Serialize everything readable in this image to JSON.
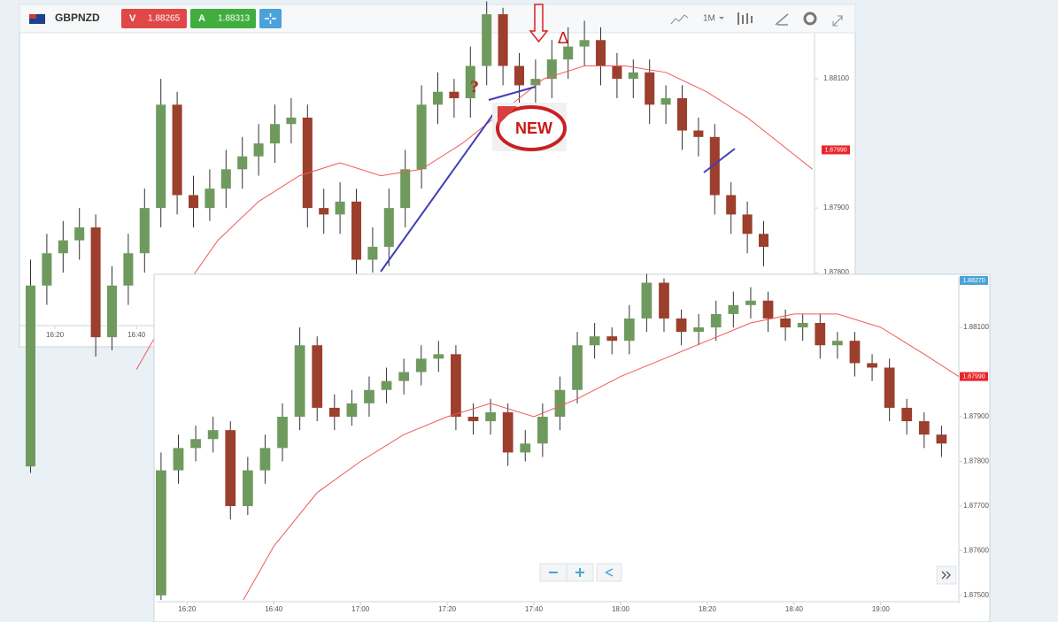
{
  "toolbar": {
    "symbol": "GBPNZD",
    "sell_label": "V",
    "sell_price": "1.88265",
    "buy_label": "A",
    "buy_price": "1.88313",
    "period": "1M"
  },
  "annotations": {
    "question": "?",
    "delta": "Δ",
    "badge": "NEW"
  },
  "chart_data": [
    {
      "type": "candlestick",
      "up_color": "#6f9a5e",
      "down_color": "#9c3f2c",
      "x": [
        14,
        18,
        22,
        26,
        30,
        34,
        38,
        42,
        46,
        50,
        54,
        58,
        62,
        66,
        70,
        74,
        78,
        82,
        86,
        90,
        94,
        98,
        102,
        106,
        110,
        114,
        118,
        122,
        126,
        130,
        134,
        138,
        142,
        146,
        150,
        154,
        158,
        162,
        166,
        170,
        174,
        178,
        182,
        186,
        190,
        194
      ],
      "open": [
        1.875,
        1.8778,
        1.8783,
        1.8785,
        1.8787,
        1.877,
        1.8778,
        1.8783,
        1.879,
        1.8806,
        1.8792,
        1.879,
        1.8793,
        1.8796,
        1.8798,
        1.88,
        1.8803,
        1.8804,
        1.879,
        1.8789,
        1.8791,
        1.8782,
        1.8784,
        1.879,
        1.8796,
        1.8806,
        1.8808,
        1.8807,
        1.8812,
        1.882,
        1.8812,
        1.8809,
        1.881,
        1.8813,
        1.8815,
        1.8816,
        1.8812,
        1.881,
        1.8811,
        1.8806,
        1.8807,
        1.8802,
        1.8801,
        1.8792,
        1.8789,
        1.8786
      ],
      "high": [
        1.8782,
        1.8786,
        1.8788,
        1.879,
        1.8789,
        1.8781,
        1.8786,
        1.8793,
        1.881,
        1.8808,
        1.8795,
        1.8796,
        1.8799,
        1.8801,
        1.8803,
        1.8806,
        1.8807,
        1.8806,
        1.8793,
        1.8794,
        1.8793,
        1.8787,
        1.8793,
        1.8799,
        1.8809,
        1.8811,
        1.881,
        1.8815,
        1.8822,
        1.8821,
        1.8814,
        1.8813,
        1.8816,
        1.8818,
        1.8819,
        1.8818,
        1.8814,
        1.8813,
        1.8813,
        1.8809,
        1.8809,
        1.8804,
        1.8803,
        1.8794,
        1.8791,
        1.8788
      ],
      "low": [
        1.8749,
        1.8775,
        1.878,
        1.8782,
        1.8767,
        1.8768,
        1.8775,
        1.878,
        1.8787,
        1.8789,
        1.8787,
        1.8788,
        1.879,
        1.8793,
        1.8795,
        1.8797,
        1.88,
        1.8787,
        1.8786,
        1.8786,
        1.8779,
        1.878,
        1.8781,
        1.8787,
        1.8793,
        1.8803,
        1.8804,
        1.8804,
        1.8809,
        1.8809,
        1.8806,
        1.8806,
        1.8807,
        1.881,
        1.8812,
        1.8809,
        1.8807,
        1.8807,
        1.8803,
        1.8803,
        1.8799,
        1.8798,
        1.8789,
        1.8786,
        1.8783,
        1.8781
      ],
      "close": [
        1.8778,
        1.8783,
        1.8785,
        1.8787,
        1.877,
        1.8778,
        1.8783,
        1.879,
        1.8806,
        1.8792,
        1.879,
        1.8793,
        1.8796,
        1.8798,
        1.88,
        1.8803,
        1.8804,
        1.879,
        1.8789,
        1.8791,
        1.8782,
        1.8784,
        1.879,
        1.8796,
        1.8806,
        1.8808,
        1.8807,
        1.8812,
        1.882,
        1.8812,
        1.8809,
        1.881,
        1.8813,
        1.8815,
        1.8816,
        1.8812,
        1.881,
        1.8811,
        1.8806,
        1.8807,
        1.8802,
        1.8801,
        1.8792,
        1.8789,
        1.8786,
        1.8784
      ],
      "moving_average": {
        "color": "#f05a5a",
        "x": [
          40,
          50,
          60,
          70,
          80,
          90,
          100,
          110,
          120,
          130,
          140,
          150,
          160,
          170,
          180,
          190,
          200,
          206
        ],
        "values": [
          1.8765,
          1.8776,
          1.8785,
          1.8791,
          1.8795,
          1.8797,
          1.8795,
          1.8796,
          1.88,
          1.8805,
          1.881,
          1.8812,
          1.8812,
          1.8811,
          1.8808,
          1.8804,
          1.8799,
          1.8796
        ]
      },
      "xlim": [
        11.5,
        206.5
      ],
      "ylim": [
        1.87718,
        1.8817
      ],
      "xticks": [
        {
          "value": 20,
          "label": "16:20"
        },
        {
          "value": 40,
          "label": "16:40"
        }
      ],
      "yticks": [
        {
          "value": 1.881,
          "label": "1.88100"
        },
        {
          "value": 1.879,
          "label": "1.87900"
        },
        {
          "value": 1.878,
          "label": "1.87800"
        }
      ],
      "price_tags": [
        {
          "value": 1.8799,
          "label": "1.87990",
          "color": "#e8262a"
        }
      ]
    },
    {
      "type": "candlestick",
      "up_color": "#6f9a5e",
      "down_color": "#9c3f2c",
      "x": [
        14,
        18,
        22,
        26,
        30,
        34,
        38,
        42,
        46,
        50,
        54,
        58,
        62,
        66,
        70,
        74,
        78,
        82,
        86,
        90,
        94,
        98,
        102,
        106,
        110,
        114,
        118,
        122,
        126,
        130,
        134,
        138,
        142,
        146,
        150,
        154,
        158,
        162,
        166,
        170,
        174,
        178,
        182,
        186,
        190,
        194
      ],
      "open": [
        1.875,
        1.8778,
        1.8783,
        1.8785,
        1.8787,
        1.877,
        1.8778,
        1.8783,
        1.879,
        1.8806,
        1.8792,
        1.879,
        1.8793,
        1.8796,
        1.8798,
        1.88,
        1.8803,
        1.8804,
        1.879,
        1.8789,
        1.8791,
        1.8782,
        1.8784,
        1.879,
        1.8796,
        1.8806,
        1.8808,
        1.8807,
        1.8812,
        1.882,
        1.8812,
        1.8809,
        1.881,
        1.8813,
        1.8815,
        1.8816,
        1.8812,
        1.881,
        1.8811,
        1.8806,
        1.8807,
        1.8802,
        1.8801,
        1.8792,
        1.8789,
        1.8786
      ],
      "high": [
        1.8782,
        1.8786,
        1.8788,
        1.879,
        1.8789,
        1.8781,
        1.8786,
        1.8793,
        1.881,
        1.8808,
        1.8795,
        1.8796,
        1.8799,
        1.8801,
        1.8803,
        1.8806,
        1.8807,
        1.8806,
        1.8793,
        1.8794,
        1.8793,
        1.8787,
        1.8793,
        1.8799,
        1.8809,
        1.8811,
        1.881,
        1.8815,
        1.8822,
        1.8821,
        1.8814,
        1.8813,
        1.8816,
        1.8818,
        1.8819,
        1.8818,
        1.8814,
        1.8813,
        1.8813,
        1.8809,
        1.8809,
        1.8804,
        1.8803,
        1.8794,
        1.8791,
        1.8788
      ],
      "low": [
        1.8749,
        1.8775,
        1.878,
        1.8782,
        1.8767,
        1.8768,
        1.8775,
        1.878,
        1.8787,
        1.8789,
        1.8787,
        1.8788,
        1.879,
        1.8793,
        1.8795,
        1.8797,
        1.88,
        1.8787,
        1.8786,
        1.8786,
        1.8779,
        1.878,
        1.8781,
        1.8787,
        1.8793,
        1.8803,
        1.8804,
        1.8804,
        1.8809,
        1.8809,
        1.8806,
        1.8806,
        1.8807,
        1.881,
        1.8812,
        1.8809,
        1.8807,
        1.8807,
        1.8803,
        1.8803,
        1.8799,
        1.8798,
        1.8789,
        1.8786,
        1.8783,
        1.8781
      ],
      "close": [
        1.8778,
        1.8783,
        1.8785,
        1.8787,
        1.877,
        1.8778,
        1.8783,
        1.879,
        1.8806,
        1.8792,
        1.879,
        1.8793,
        1.8796,
        1.8798,
        1.88,
        1.8803,
        1.8804,
        1.879,
        1.8789,
        1.8791,
        1.8782,
        1.8784,
        1.879,
        1.8796,
        1.8806,
        1.8808,
        1.8807,
        1.8812,
        1.882,
        1.8812,
        1.8809,
        1.881,
        1.8813,
        1.8815,
        1.8816,
        1.8812,
        1.881,
        1.8811,
        1.8806,
        1.8807,
        1.8802,
        1.8801,
        1.8792,
        1.8789,
        1.8786,
        1.8784
      ],
      "moving_average": {
        "color": "#f05a5a",
        "x": [
          33,
          40,
          50,
          60,
          70,
          80,
          90,
          100,
          110,
          120,
          130,
          140,
          150,
          160,
          170,
          180,
          190,
          198
        ],
        "values": [
          1.8749,
          1.8761,
          1.8773,
          1.878,
          1.8786,
          1.879,
          1.8793,
          1.879,
          1.8794,
          1.8799,
          1.8803,
          1.8807,
          1.8811,
          1.8813,
          1.8813,
          1.881,
          1.8804,
          1.8799
        ]
      },
      "xlim": [
        13,
        198
      ],
      "ylim": [
        1.87486,
        1.88213
      ],
      "xticks": [
        {
          "value": 20,
          "label": "16:20"
        },
        {
          "value": 40,
          "label": "16:40"
        },
        {
          "value": 60,
          "label": "17:00"
        },
        {
          "value": 80,
          "label": "17:20"
        },
        {
          "value": 100,
          "label": "17:40"
        },
        {
          "value": 120,
          "label": "18:00"
        },
        {
          "value": 140,
          "label": "18:20"
        },
        {
          "value": 160,
          "label": "18:40"
        },
        {
          "value": 180,
          "label": "19:00"
        }
      ],
      "yticks": [
        {
          "value": 1.881,
          "label": "1.88100"
        },
        {
          "value": 1.879,
          "label": "1.87900"
        },
        {
          "value": 1.878,
          "label": "1.87800"
        },
        {
          "value": 1.877,
          "label": "1.87700"
        },
        {
          "value": 1.876,
          "label": "1.87600"
        },
        {
          "value": 1.875,
          "label": "1.87500"
        }
      ],
      "price_tags": [
        {
          "value": 1.8799,
          "label": "1.87990",
          "color": "#e8262a"
        },
        {
          "value": 1.8827,
          "label": "1.88270",
          "color": "#4aa3d8"
        }
      ]
    }
  ]
}
